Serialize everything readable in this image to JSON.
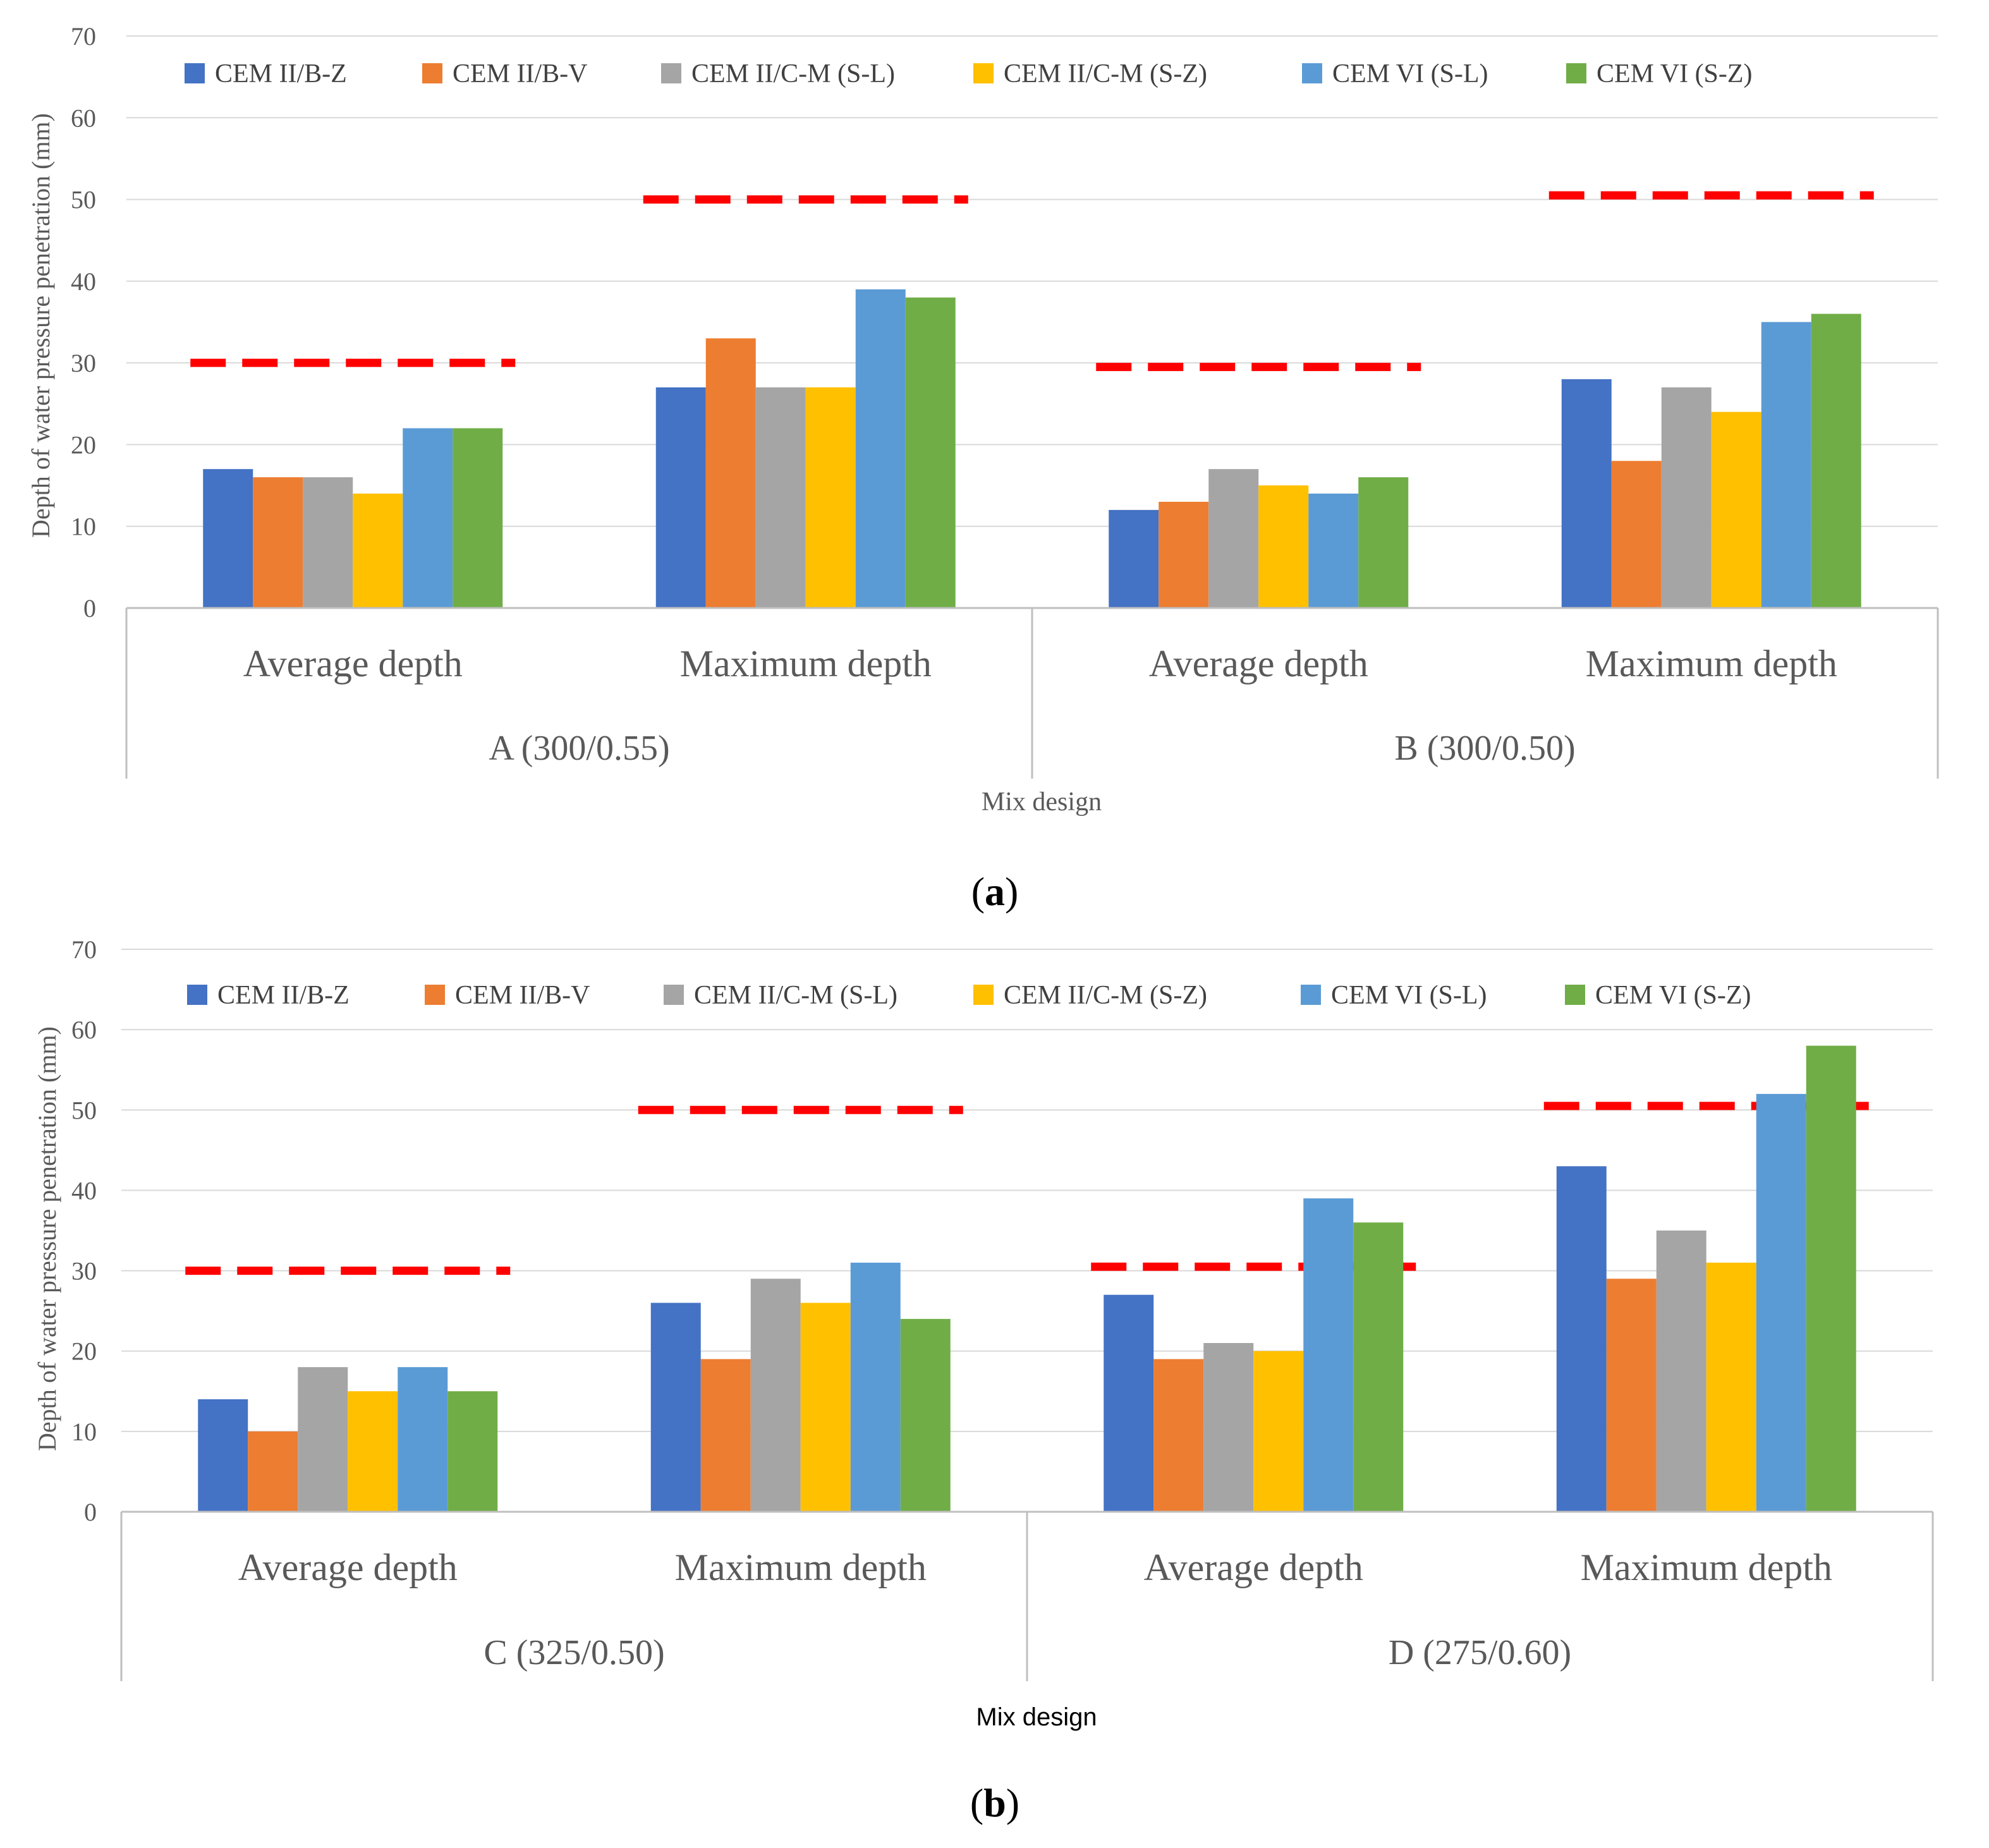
{
  "chart_data": [
    {
      "type": "bar",
      "panel": "a",
      "panel_label": "a",
      "xlabel": "Mix design",
      "ylabel": "Depth of water pressure penetration (mm)",
      "ylim": [
        0,
        70
      ],
      "yticks": [
        0,
        10,
        20,
        30,
        40,
        50,
        60,
        70
      ],
      "grid": true,
      "legend_position": "top",
      "categories": [
        "Average depth",
        "Maximum depth",
        "Average depth",
        "Maximum depth"
      ],
      "groups": [
        {
          "label": "A (300/0.55)",
          "categories": [
            0,
            1
          ]
        },
        {
          "label": "B (300/0.50)",
          "categories": [
            2,
            3
          ]
        }
      ],
      "series": [
        {
          "name": "CEM II/B-Z",
          "color": "#4472C4",
          "values": [
            17,
            27,
            12,
            28
          ]
        },
        {
          "name": "CEM II/B-V",
          "color": "#ED7D31",
          "values": [
            16,
            33,
            13,
            18
          ]
        },
        {
          "name": "CEM II/C-M (S-L)",
          "color": "#A5A5A5",
          "values": [
            16,
            27,
            17,
            27
          ]
        },
        {
          "name": "CEM II/C-M (S-Z)",
          "color": "#FFC000",
          "values": [
            14,
            27,
            15,
            24
          ]
        },
        {
          "name": "CEM VI (S-L)",
          "color": "#5B9BD5",
          "values": [
            22,
            39,
            14,
            35
          ]
        },
        {
          "name": "CEM VI (S-Z)",
          "color": "#70AD47",
          "values": [
            22,
            38,
            16,
            36
          ]
        }
      ],
      "limit_lines": [
        {
          "category": 0,
          "value": 30,
          "color": "#FF0000"
        },
        {
          "category": 1,
          "value": 50,
          "color": "#FF0000"
        },
        {
          "category": 2,
          "value": 29.5,
          "color": "#FF0000"
        },
        {
          "category": 3,
          "value": 50.5,
          "color": "#FF0000"
        }
      ]
    },
    {
      "type": "bar",
      "panel": "b",
      "panel_label": "b",
      "xlabel": "Mix design",
      "ylabel": "Depth of water pressure penetration (mm)",
      "ylim": [
        0,
        70
      ],
      "yticks": [
        0,
        10,
        20,
        30,
        40,
        50,
        60,
        70
      ],
      "grid": true,
      "legend_position": "top",
      "categories": [
        "Average depth",
        "Maximum depth",
        "Average depth",
        "Maximum depth"
      ],
      "groups": [
        {
          "label": "C (325/0.50)",
          "categories": [
            0,
            1
          ]
        },
        {
          "label": "D (275/0.60)",
          "categories": [
            2,
            3
          ]
        }
      ],
      "series": [
        {
          "name": "CEM II/B-Z",
          "color": "#4472C4",
          "values": [
            14,
            26,
            27,
            43
          ]
        },
        {
          "name": "CEM II/B-V",
          "color": "#ED7D31",
          "values": [
            10,
            19,
            19,
            29
          ]
        },
        {
          "name": "CEM II/C-M (S-L)",
          "color": "#A5A5A5",
          "values": [
            18,
            29,
            21,
            35
          ]
        },
        {
          "name": "CEM II/C-M (S-Z)",
          "color": "#FFC000",
          "values": [
            15,
            26,
            20,
            31
          ]
        },
        {
          "name": "CEM VI (S-L)",
          "color": "#5B9BD5",
          "values": [
            18,
            31,
            39,
            52
          ]
        },
        {
          "name": "CEM VI (S-Z)",
          "color": "#70AD47",
          "values": [
            15,
            24,
            36,
            58
          ]
        }
      ],
      "limit_lines": [
        {
          "category": 0,
          "value": 30,
          "color": "#FF0000"
        },
        {
          "category": 1,
          "value": 50,
          "color": "#FF0000"
        },
        {
          "category": 2,
          "value": 30.5,
          "color": "#FF0000"
        },
        {
          "category": 3,
          "value": 50.5,
          "color": "#FF0000"
        }
      ]
    }
  ]
}
